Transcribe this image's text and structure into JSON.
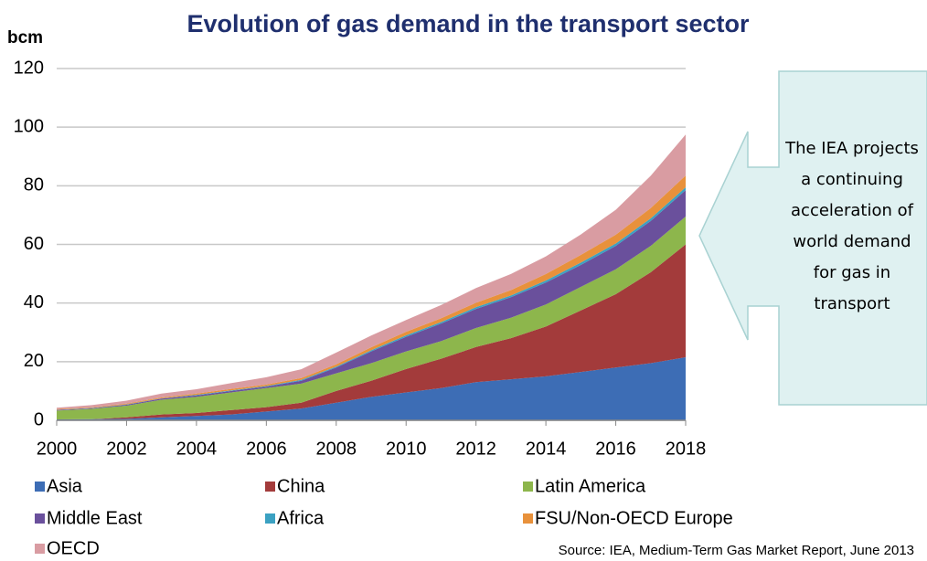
{
  "chart_data": {
    "type": "stacked_area",
    "title": "Evolution of gas demand in the transport sector",
    "y_label": "bcm",
    "annotation": "The IEA projects a continuing acceleration of world demand for gas in transport",
    "source": "Source: IEA, Medium-Term Gas Market Report, June 2013",
    "x": [
      2000,
      2001,
      2002,
      2003,
      2004,
      2005,
      2006,
      2007,
      2008,
      2009,
      2010,
      2011,
      2012,
      2013,
      2014,
      2015,
      2016,
      2017,
      2018
    ],
    "xlim": [
      2000,
      2018
    ],
    "xticks": [
      2000,
      2002,
      2004,
      2006,
      2008,
      2010,
      2012,
      2014,
      2016,
      2018
    ],
    "ylim": [
      0,
      120
    ],
    "yticks": [
      0,
      20,
      40,
      60,
      80,
      100,
      120
    ],
    "grid": true,
    "series": [
      {
        "name": "Asia",
        "color": "#3d6db5",
        "values": [
          0.3,
          0.4,
          0.5,
          1,
          1.5,
          2,
          3,
          4,
          6,
          8,
          9.5,
          11,
          13,
          14,
          15,
          16.5,
          18,
          19.5,
          21.5
        ]
      },
      {
        "name": "China",
        "color": "#a33b3b",
        "values": [
          0,
          0,
          0.5,
          1,
          1,
          1.5,
          1.5,
          2,
          4,
          5.5,
          8,
          10,
          12,
          14,
          17,
          21,
          25,
          31,
          38.5
        ]
      },
      {
        "name": "Latin America",
        "color": "#8db64c",
        "values": [
          3,
          3.5,
          4,
          5,
          5.5,
          6,
          6.5,
          6.5,
          6,
          6,
          6,
          6,
          6.5,
          7,
          7.5,
          8,
          8.5,
          9,
          9.5
        ]
      },
      {
        "name": "Middle East",
        "color": "#6a509c",
        "values": [
          0.2,
          0.2,
          0.3,
          0.4,
          0.5,
          0.5,
          0.5,
          1,
          2,
          4,
          5,
          6,
          6.5,
          7,
          7.5,
          7.5,
          8,
          8.5,
          9
        ]
      },
      {
        "name": "Africa",
        "color": "#3ba1c2",
        "values": [
          0.1,
          0.1,
          0.1,
          0.1,
          0.2,
          0.2,
          0.2,
          0.3,
          0.3,
          0.4,
          0.5,
          0.5,
          0.6,
          0.6,
          0.7,
          0.8,
          0.8,
          0.9,
          1
        ]
      },
      {
        "name": "FSU/Non-OECD Europe",
        "color": "#e8913b",
        "values": [
          0.2,
          0.2,
          0.3,
          0.3,
          0.4,
          0.5,
          0.5,
          0.6,
          0.8,
          1,
          1.2,
          1.3,
          1.5,
          1.8,
          2.2,
          2.6,
          3,
          3.5,
          4
        ]
      },
      {
        "name": "OECD",
        "color": "#d99ca2",
        "values": [
          0.5,
          0.8,
          1,
          1.3,
          1.5,
          2,
          2.5,
          3,
          4,
          4,
          4,
          4.5,
          5,
          5.5,
          6,
          7,
          8.5,
          11,
          14
        ]
      }
    ]
  }
}
